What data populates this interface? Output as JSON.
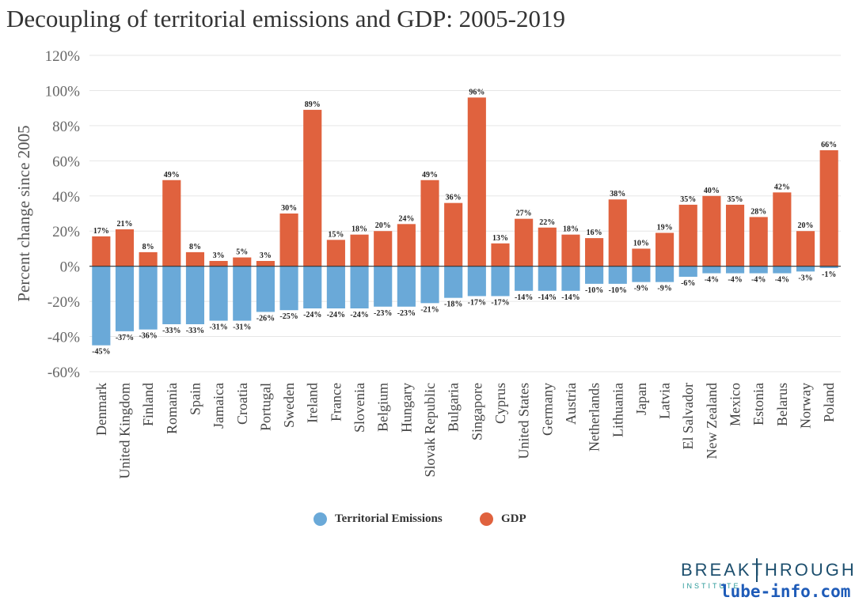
{
  "chart_data": {
    "type": "bar",
    "title": "Decoupling of territorial emissions and GDP: 2005-2019",
    "ylabel": "Percent change since 2005",
    "xlabel": "",
    "ylim": [
      -60,
      120
    ],
    "yticks": [
      -60,
      -40,
      -20,
      0,
      20,
      40,
      60,
      80,
      100,
      120
    ],
    "grid": true,
    "legend_position": "bottom",
    "categories": [
      "Denmark",
      "United Kingdom",
      "Finland",
      "Romania",
      "Spain",
      "Jamaica",
      "Croatia",
      "Portugal",
      "Sweden",
      "Ireland",
      "France",
      "Slovenia",
      "Belgium",
      "Hungary",
      "Slovak Republic",
      "Bulgaria",
      "Singapore",
      "Cyprus",
      "United States",
      "Germany",
      "Austria",
      "Netherlands",
      "Lithuania",
      "Japan",
      "Latvia",
      "El Salvador",
      "New Zealand",
      "Mexico",
      "Estonia",
      "Belarus",
      "Norway",
      "Poland"
    ],
    "series": [
      {
        "name": "Territorial Emissions",
        "color": "#6aa9d8",
        "values": [
          -45,
          -37,
          -36,
          -33,
          -33,
          -31,
          -31,
          -26,
          -25,
          -24,
          -24,
          -24,
          -23,
          -23,
          -21,
          -18,
          -17,
          -17,
          -14,
          -14,
          -14,
          -10,
          -10,
          -9,
          -9,
          -6,
          -4,
          -4,
          -4,
          -4,
          -3,
          -1
        ]
      },
      {
        "name": "GDP",
        "color": "#e0623e",
        "values": [
          17,
          21,
          8,
          49,
          8,
          3,
          5,
          3,
          30,
          89,
          15,
          18,
          20,
          24,
          49,
          36,
          96,
          13,
          27,
          22,
          18,
          16,
          38,
          10,
          19,
          35,
          40,
          35,
          28,
          42,
          20,
          66
        ]
      }
    ]
  },
  "logo": {
    "main": "BREAKTHROUGH",
    "sub": "INSTITUTE"
  },
  "watermark": "lube-info.com"
}
